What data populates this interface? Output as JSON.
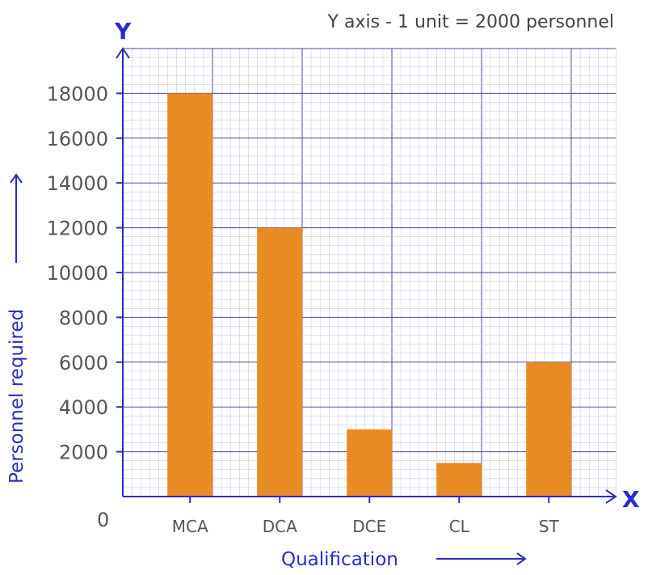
{
  "note": "Y axis - 1 unit = 2000 personnel",
  "colors": {
    "bar": "#e98b25",
    "axis": "#2b2bcc",
    "grid_major": "#4a4a9a",
    "grid_minor": "#c8cbee"
  },
  "chart_data": {
    "type": "bar",
    "categories": [
      "MCA",
      "DCA",
      "DCE",
      "CL",
      "ST"
    ],
    "values": [
      18000,
      12000,
      3000,
      1500,
      6000
    ],
    "ylim": [
      0,
      20000
    ],
    "yticks": [
      2000,
      4000,
      6000,
      8000,
      10000,
      12000,
      14000,
      16000,
      18000
    ],
    "origin_label": "0",
    "x_axis_letter": "X",
    "y_axis_letter": "Y",
    "xlabel": "Qualification",
    "ylabel": "Personnel required",
    "grid": true
  }
}
